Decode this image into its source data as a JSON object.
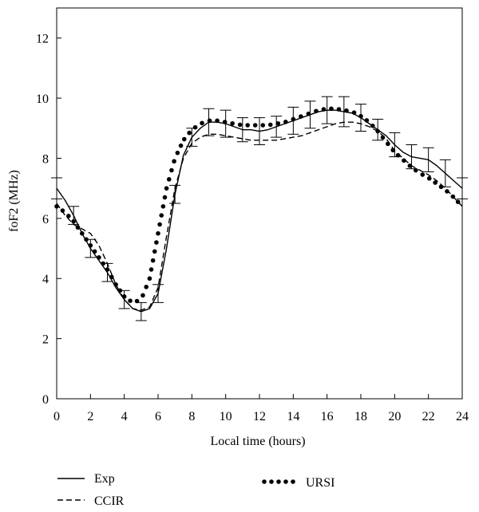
{
  "chart_data": {
    "type": "line",
    "title": "",
    "xlabel": "Local time (hours)",
    "ylabel": "foF2 (MHz)",
    "xlim": [
      0,
      24
    ],
    "ylim": [
      0,
      13.0
    ],
    "x_ticks": [
      0,
      2,
      4,
      6,
      8,
      10,
      12,
      14,
      16,
      18,
      20,
      22,
      24
    ],
    "y_ticks": [
      0,
      2,
      4,
      6,
      8,
      10,
      12
    ],
    "grid": false,
    "legend": "bottom-left",
    "series": [
      {
        "name": "Exp",
        "style": "solid",
        "color": "#000000",
        "x": [
          0,
          0.5,
          1,
          1.5,
          2,
          2.5,
          3,
          3.5,
          4,
          4.5,
          5,
          5.5,
          6,
          6.5,
          7,
          7.5,
          8,
          8.5,
          9,
          9.5,
          10,
          10.5,
          11,
          11.5,
          12,
          12.5,
          13,
          13.5,
          14,
          14.5,
          15,
          15.5,
          16,
          16.5,
          17,
          17.5,
          18,
          18.5,
          19,
          19.5,
          20,
          20.5,
          21,
          21.5,
          22,
          22.5,
          23,
          23.5,
          24
        ],
        "values": [
          7.0,
          6.6,
          6.1,
          5.5,
          5.0,
          4.6,
          4.2,
          3.7,
          3.3,
          3.0,
          2.9,
          3.0,
          3.5,
          5.0,
          6.8,
          8.1,
          8.7,
          9.0,
          9.2,
          9.2,
          9.15,
          9.05,
          8.95,
          8.95,
          8.9,
          8.95,
          9.05,
          9.15,
          9.25,
          9.35,
          9.45,
          9.55,
          9.6,
          9.6,
          9.55,
          9.5,
          9.35,
          9.15,
          8.95,
          8.75,
          8.45,
          8.2,
          8.05,
          8.0,
          7.95,
          7.75,
          7.5,
          7.25,
          7.0
        ],
        "error": [
          0.35,
          0.3,
          0.3,
          0.3,
          0.3,
          0.3,
          0.3,
          0.3,
          0.3,
          0.3,
          0.3,
          0.3,
          0.3,
          0.3,
          0.3,
          0.3,
          0.3,
          0.3,
          0.45,
          0.3,
          0.45,
          0.3,
          0.4,
          0.3,
          0.45,
          0.3,
          0.35,
          0.3,
          0.45,
          0.3,
          0.45,
          0.3,
          0.45,
          0.3,
          0.5,
          0.3,
          0.45,
          0.3,
          0.35,
          0.3,
          0.4,
          0.3,
          0.4,
          0.3,
          0.4,
          0.3,
          0.45,
          0.3,
          0.35
        ],
        "error_bar_x": [
          0,
          1,
          2,
          3,
          4,
          5,
          6,
          7,
          8,
          9,
          10,
          11,
          12,
          13,
          14,
          15,
          16,
          17,
          18,
          19,
          20,
          21,
          22,
          23,
          24
        ]
      },
      {
        "name": "CCIR",
        "style": "dashed",
        "color": "#000000",
        "x": [
          0,
          0.5,
          1,
          1.5,
          2,
          2.5,
          3,
          3.5,
          4,
          4.5,
          5,
          5.5,
          6,
          6.5,
          7,
          7.5,
          8,
          8.5,
          9,
          9.5,
          10,
          10.5,
          11,
          11.5,
          12,
          12.5,
          13,
          13.5,
          14,
          14.5,
          15,
          15.5,
          16,
          16.5,
          17,
          17.5,
          18,
          18.5,
          19,
          19.5,
          20,
          20.5,
          21,
          21.5,
          22,
          22.5,
          23,
          23.5,
          24
        ],
        "values": [
          6.5,
          6.1,
          5.8,
          5.65,
          5.5,
          5.1,
          4.5,
          3.8,
          3.3,
          3.0,
          2.95,
          3.05,
          3.7,
          5.4,
          7.0,
          8.0,
          8.5,
          8.7,
          8.8,
          8.8,
          8.75,
          8.7,
          8.65,
          8.6,
          8.6,
          8.6,
          8.6,
          8.65,
          8.7,
          8.75,
          8.85,
          8.95,
          9.05,
          9.15,
          9.2,
          9.2,
          9.15,
          9.05,
          8.9,
          8.65,
          8.25,
          8.0,
          7.75,
          7.6,
          7.45,
          7.25,
          7.0,
          6.7,
          6.4
        ]
      },
      {
        "name": "URSI",
        "style": "dotted",
        "color": "#000000",
        "x": [
          0,
          0.5,
          1,
          1.5,
          2,
          2.5,
          3,
          3.5,
          4,
          4.5,
          5,
          5.5,
          6,
          6.5,
          7,
          7.5,
          8,
          8.5,
          9,
          9.5,
          10,
          10.5,
          11,
          11.5,
          12,
          12.5,
          13,
          13.5,
          14,
          14.5,
          15,
          15.5,
          16,
          16.5,
          17,
          17.5,
          18,
          18.5,
          19,
          19.5,
          20,
          20.5,
          21,
          21.5,
          22,
          22.5,
          23,
          23.5,
          24
        ],
        "values": [
          6.4,
          6.2,
          5.9,
          5.5,
          5.1,
          4.7,
          4.3,
          3.8,
          3.4,
          3.2,
          3.3,
          4.0,
          5.5,
          7.0,
          8.0,
          8.6,
          8.95,
          9.15,
          9.25,
          9.25,
          9.2,
          9.15,
          9.1,
          9.1,
          9.1,
          9.1,
          9.15,
          9.2,
          9.3,
          9.4,
          9.5,
          9.6,
          9.65,
          9.65,
          9.6,
          9.55,
          9.4,
          9.2,
          8.9,
          8.55,
          8.2,
          7.95,
          7.7,
          7.5,
          7.35,
          7.15,
          6.95,
          6.7,
          6.4
        ]
      }
    ]
  }
}
